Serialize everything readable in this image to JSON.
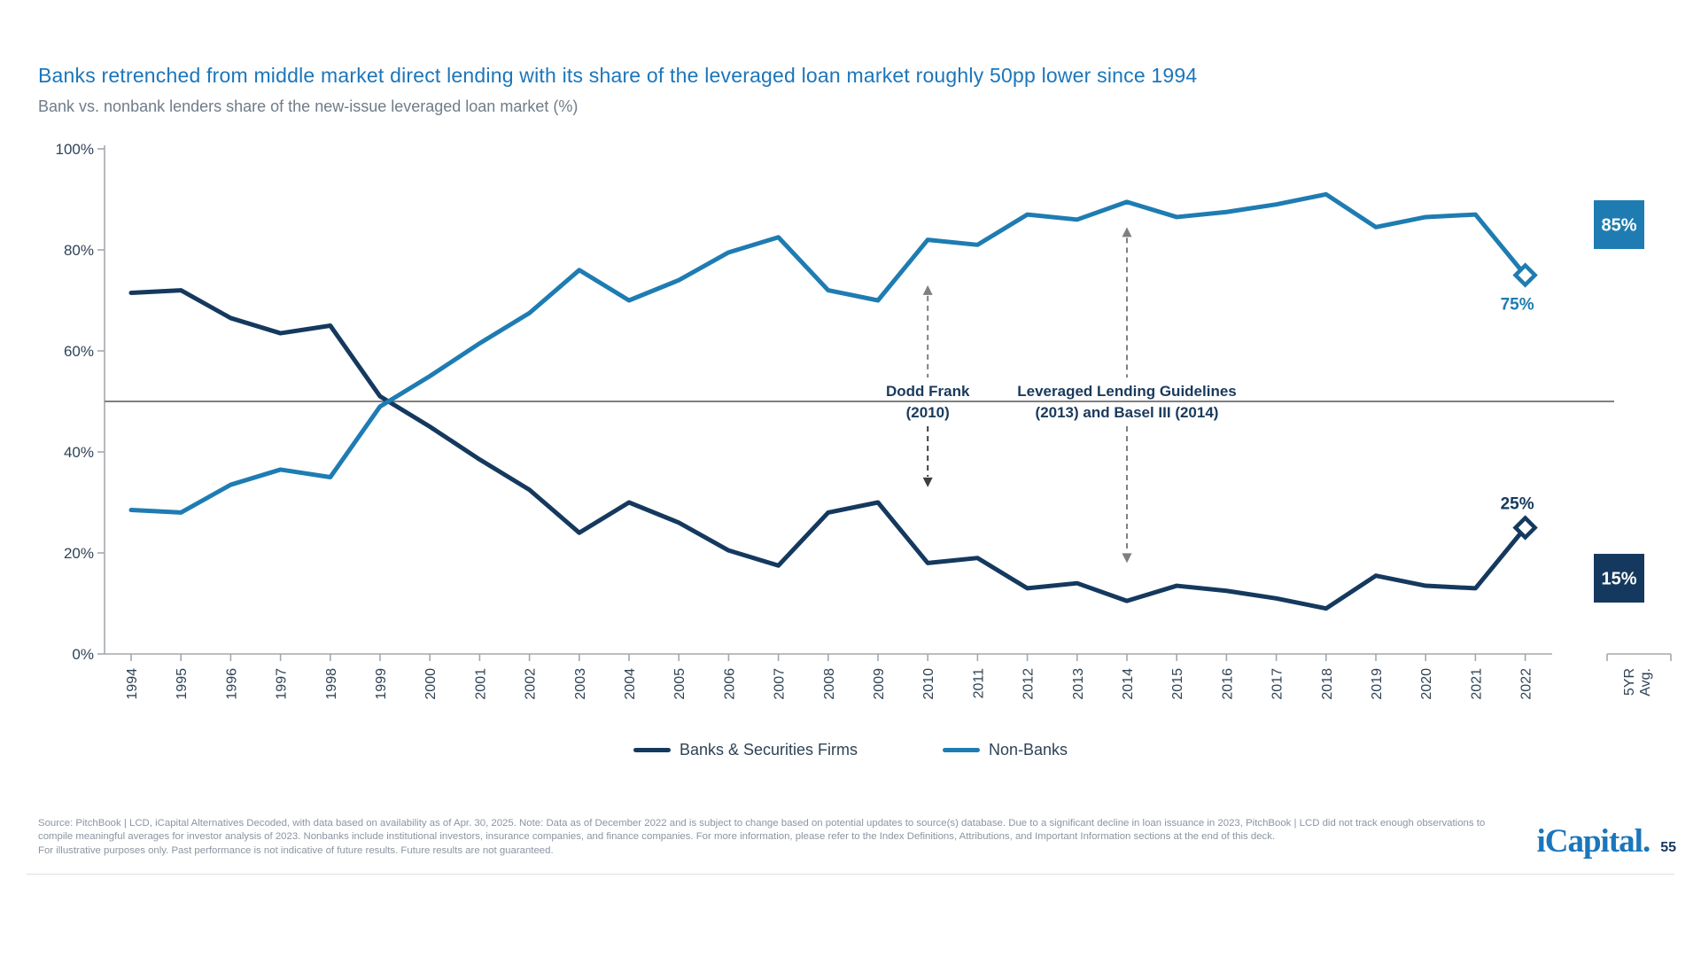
{
  "header": {
    "title": "Banks retrenched from middle market direct lending with its share of the leveraged loan market roughly 50pp lower since 1994",
    "subtitle": "Bank vs. nonbank lenders share of the new-issue leveraged loan market (%)"
  },
  "chart_data": {
    "type": "line",
    "categories": [
      "1994",
      "1995",
      "1996",
      "1997",
      "1998",
      "1999",
      "2000",
      "2001",
      "2002",
      "2003",
      "2004",
      "2005",
      "2006",
      "2007",
      "2008",
      "2009",
      "2010",
      "2011",
      "2012",
      "2013",
      "2014",
      "2015",
      "2016",
      "2017",
      "2018",
      "2019",
      "2020",
      "2021",
      "2022"
    ],
    "series": [
      {
        "name": "Banks & Securities Firms",
        "color": "#15395E",
        "end_label": "25%",
        "values": [
          71.5,
          72,
          66.5,
          63.5,
          65,
          51,
          45,
          38.5,
          32.5,
          24,
          30,
          26,
          20.5,
          17.5,
          28,
          30,
          18,
          19,
          13,
          14,
          10.5,
          13.5,
          12.5,
          11,
          9,
          15.5,
          13.5,
          13,
          25
        ]
      },
      {
        "name": "Non-Banks",
        "color": "#1E7CB2",
        "end_label": "75%",
        "values": [
          28.5,
          28,
          33.5,
          36.5,
          35,
          49,
          55,
          61.5,
          67.5,
          76,
          70,
          74,
          79.5,
          82.5,
          72,
          70,
          82,
          81,
          87,
          86,
          89.5,
          86.5,
          87.5,
          89,
          91,
          84.5,
          86.5,
          87,
          75
        ]
      }
    ],
    "y_ticks": [
      {
        "label": "0%",
        "value": 0
      },
      {
        "label": "20%",
        "value": 20
      },
      {
        "label": "40%",
        "value": 40
      },
      {
        "label": "60%",
        "value": 60
      },
      {
        "label": "80%",
        "value": 80
      },
      {
        "label": "100%",
        "value": 100
      }
    ],
    "ylim": [
      0,
      100
    ],
    "reference_line": 50,
    "grid": "off",
    "legend_position": "bottom",
    "annotations": [
      {
        "label_lines": [
          "Dodd Frank",
          "(2010)"
        ],
        "year": "2010",
        "arrow_up_tip": 73,
        "arrow_down_tip": 33,
        "up_color": "#7F7F7F",
        "down_color": "#3F3F3F"
      },
      {
        "label_lines": [
          "Leveraged Lending Guidelines",
          "(2013) and Basel III (2014)"
        ],
        "year": "2014",
        "arrow_up_tip": 84.5,
        "arrow_down_tip": 18,
        "up_color": "#7F7F7F",
        "down_color": "#7F7F7F"
      }
    ],
    "avg_column": {
      "label_lines": [
        "5YR",
        "Avg."
      ],
      "boxes": [
        {
          "label": "85%",
          "value": 85,
          "color": "#1E7CB2"
        },
        {
          "label": "15%",
          "value": 15,
          "color": "#15395E"
        }
      ]
    }
  },
  "footer": {
    "disclosure": "Source: PitchBook | LCD, iCapital Alternatives Decoded, with data based on availability as of Apr. 30, 2025. Note: Data as of December 2022 and is subject to change based on potential updates to source(s) database. Due to a significant decline in loan issuance in 2023, PitchBook | LCD did not track enough observations to compile meaningful averages for investor analysis of 2023. Nonbanks include institutional investors, insurance companies, and finance companies. For more information, please refer to the Index Definitions, Attributions, and Important Information sections at the end of this deck.",
    "disclaimer": "For illustrative purposes only. Past performance is not indicative of future results. Future results are not guaranteed."
  },
  "logo": {
    "brand": "iCapital.",
    "page": "55"
  }
}
